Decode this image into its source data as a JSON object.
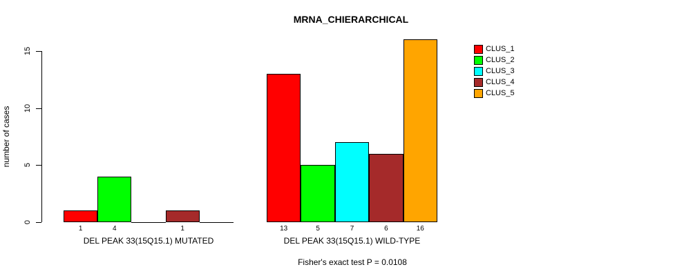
{
  "chart_data": {
    "type": "bar",
    "title": "MRNA_CHIERARCHICAL",
    "ylabel": "number of cases",
    "ylim": [
      0,
      16
    ],
    "yticks": [
      0,
      5,
      10,
      15
    ],
    "grid": false,
    "legend_position": "right",
    "legend": [
      {
        "label": "CLUS_1",
        "color": "#FF0000"
      },
      {
        "label": "CLUS_2",
        "color": "#00FF00"
      },
      {
        "label": "CLUS_3",
        "color": "#00FFFF"
      },
      {
        "label": "CLUS_4",
        "color": "#A52A2A"
      },
      {
        "label": "CLUS_5",
        "color": "#FFA500"
      }
    ],
    "categories": [
      "DEL PEAK 33(15Q15.1) MUTATED",
      "DEL PEAK 33(15Q15.1) WILD-TYPE"
    ],
    "series": [
      {
        "name": "CLUS_1",
        "values": [
          1,
          13
        ]
      },
      {
        "name": "CLUS_2",
        "values": [
          4,
          5
        ]
      },
      {
        "name": "CLUS_3",
        "values": [
          0,
          7
        ]
      },
      {
        "name": "CLUS_4",
        "values": [
          1,
          6
        ]
      },
      {
        "name": "CLUS_5",
        "values": [
          0,
          16
        ]
      }
    ],
    "groups": [
      {
        "label": "DEL PEAK 33(15Q15.1) MUTATED",
        "values": [
          1,
          4,
          0,
          1,
          0
        ],
        "bar_labels": [
          "1",
          "4",
          "",
          "1",
          ""
        ]
      },
      {
        "label": "DEL PEAK 33(15Q15.1) WILD-TYPE",
        "values": [
          13,
          5,
          7,
          6,
          16
        ],
        "bar_labels": [
          "13",
          "5",
          "7",
          "6",
          "16"
        ]
      }
    ],
    "annotation": "Fisher's exact test P = 0.0108"
  },
  "colors": {
    "bar_border": "#000000",
    "axis": "#000000",
    "background": "#FFFFFF",
    "clus_1": "#FF0000",
    "clus_2": "#00FF00",
    "clus_3": "#00FFFF",
    "clus_4": "#A52A2A",
    "clus_5": "#FFA500"
  }
}
